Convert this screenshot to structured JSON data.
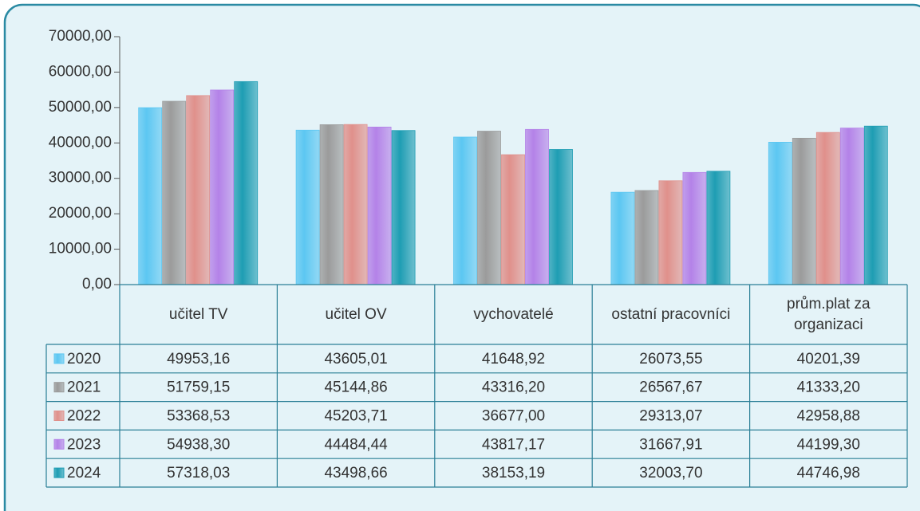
{
  "chart_data": {
    "type": "bar",
    "categories": [
      "učitel TV",
      "učitel OV",
      "vychovatelé",
      "ostatní pracovníci",
      "prům.plat za organizaci"
    ],
    "series": [
      {
        "name": "2020",
        "color": "#5cc7f2",
        "values": [
          49953.16,
          43605.01,
          41648.92,
          26073.55,
          40201.39
        ],
        "value_labels": [
          "49953,16",
          "43605,01",
          "41648,92",
          "26073,55",
          "40201,39"
        ]
      },
      {
        "name": "2021",
        "color": "#9b9b9b",
        "values": [
          51759.15,
          45144.86,
          43316.2,
          26567.67,
          41333.2
        ],
        "value_labels": [
          "51759,15",
          "45144,86",
          "43316,20",
          "26567,67",
          "41333,20"
        ]
      },
      {
        "name": "2022",
        "color": "#e0908b",
        "values": [
          53368.53,
          45203.71,
          36677.0,
          29313.07,
          42958.88
        ],
        "value_labels": [
          "53368,53",
          "45203,71",
          "36677,00",
          "29313,07",
          "42958,88"
        ]
      },
      {
        "name": "2023",
        "color": "#b482e8",
        "values": [
          54938.3,
          44484.44,
          43817.17,
          31667.91,
          44199.3
        ],
        "value_labels": [
          "54938,30",
          "44484,44",
          "43817,17",
          "31667,91",
          "44199,30"
        ]
      },
      {
        "name": "2024",
        "color": "#1e9db3",
        "values": [
          57318.03,
          43498.66,
          38153.19,
          32003.7,
          44746.98
        ],
        "value_labels": [
          "57318,03",
          "43498,66",
          "38153,19",
          "32003,70",
          "44746,98"
        ]
      }
    ],
    "ylim": [
      0,
      70000
    ],
    "yticks": [
      {
        "value": 0,
        "label": "0,00"
      },
      {
        "value": 10000,
        "label": "10000,00"
      },
      {
        "value": 20000,
        "label": "20000,00"
      },
      {
        "value": 30000,
        "label": "30000,00"
      },
      {
        "value": 40000,
        "label": "40000,00"
      },
      {
        "value": 50000,
        "label": "50000,00"
      },
      {
        "value": 60000,
        "label": "60000,00"
      },
      {
        "value": 70000,
        "label": "70000,00"
      }
    ]
  }
}
